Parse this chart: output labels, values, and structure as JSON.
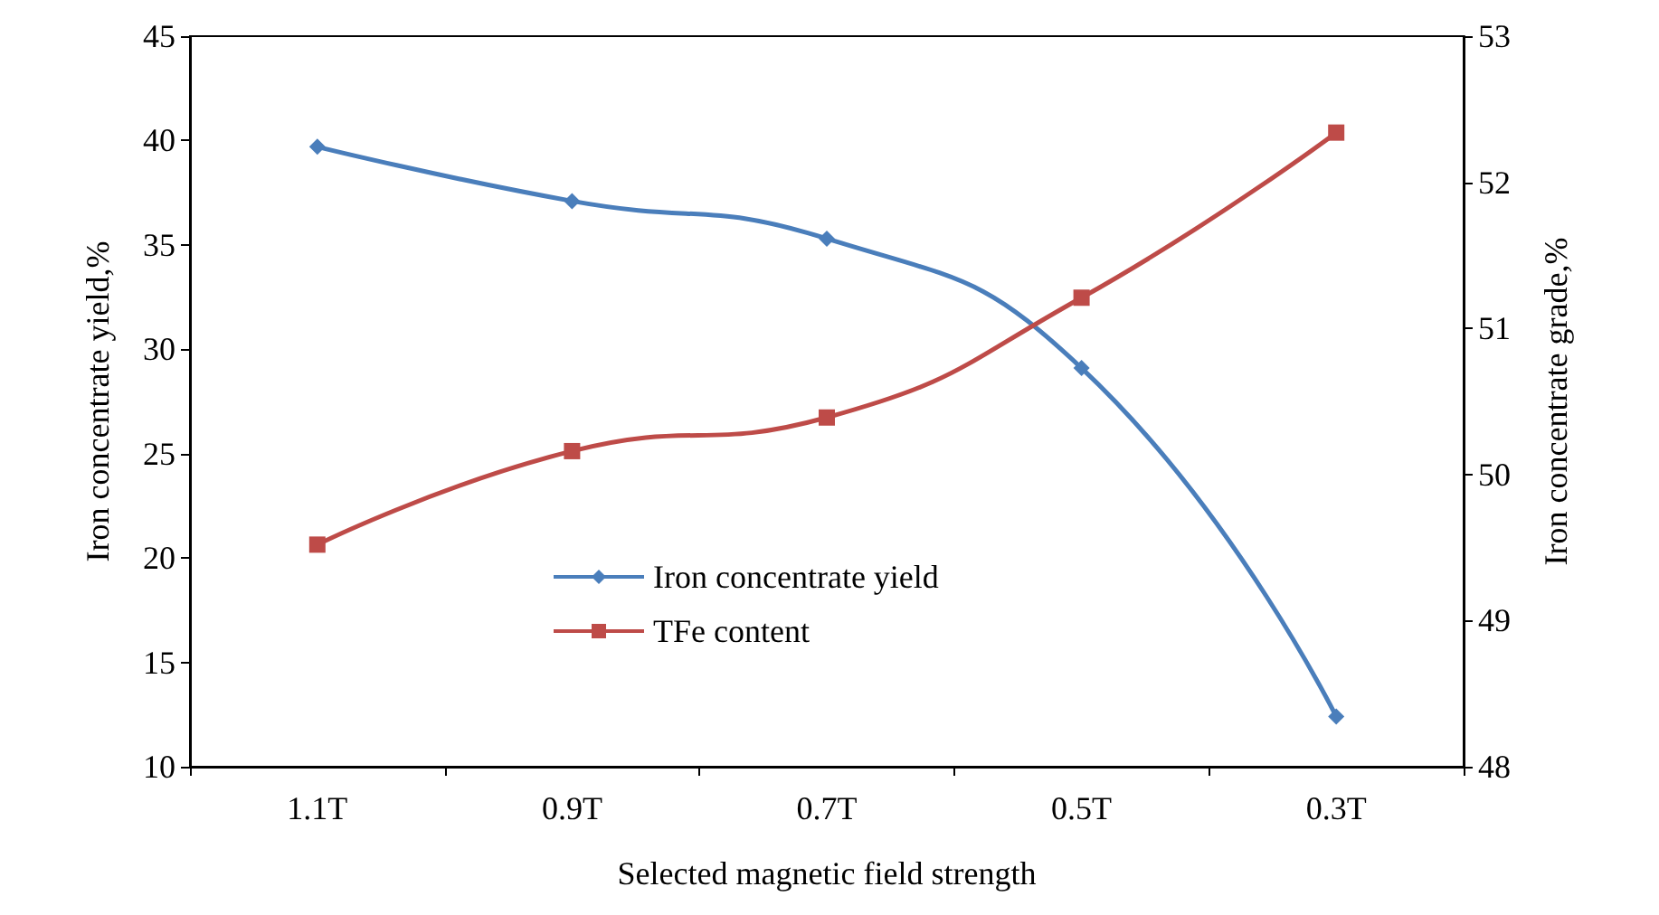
{
  "chart_data": {
    "type": "line",
    "xlabel": "Selected magnetic field strength",
    "ylabel": "Iron concentrate yield,%",
    "y2label": "Iron concentrate grade,%",
    "categories": [
      "1.1T",
      "0.9T",
      "0.7T",
      "0.5T",
      "0.3T"
    ],
    "series": [
      {
        "name": "Iron concentrate yield",
        "color": "#4a7ebb",
        "marker": "diamond",
        "values": [
          39.7,
          37.1,
          35.3,
          29.1,
          12.4
        ]
      },
      {
        "name": "TFe content",
        "color": "#be4b48",
        "marker": "square",
        "axis": "y2",
        "values": [
          49.52,
          50.16,
          50.39,
          51.21,
          52.34
        ]
      }
    ],
    "ylim": [
      10,
      45
    ],
    "yticks": [
      10,
      15,
      20,
      25,
      30,
      35,
      40,
      45
    ],
    "y2lim": [
      48,
      53
    ],
    "y2ticks": [
      48,
      49,
      50,
      51,
      52,
      53
    ],
    "legend": "center",
    "grid": false,
    "line_style": "solid"
  }
}
